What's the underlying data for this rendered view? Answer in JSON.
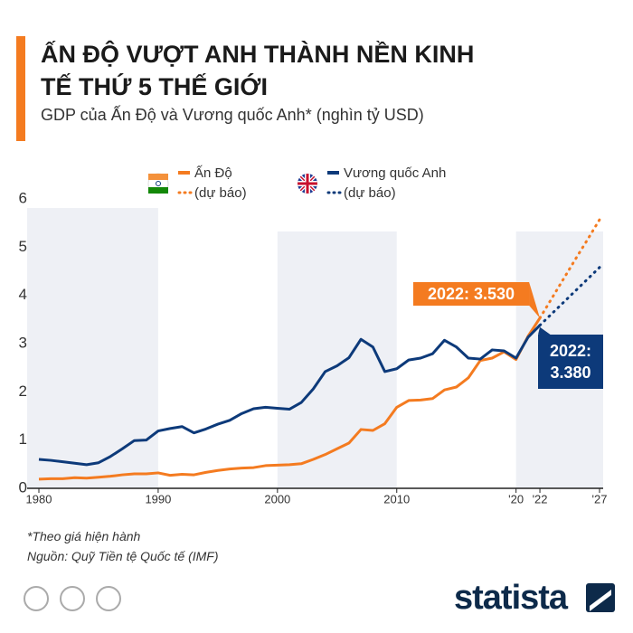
{
  "chart_data": {
    "type": "line",
    "title": "ẤN ĐỘ VƯỢT ANH THÀNH NỀN KINH TẾ THỨ 5 THẾ GIỚI",
    "subtitle": "GDP của Ấn Độ và Vương quốc Anh* (nghìn tỷ USD)",
    "x": [
      1980,
      1981,
      1982,
      1983,
      1984,
      1985,
      1986,
      1987,
      1988,
      1989,
      1990,
      1991,
      1992,
      1993,
      1994,
      1995,
      1996,
      1997,
      1998,
      1999,
      2000,
      2001,
      2002,
      2003,
      2004,
      2005,
      2006,
      2007,
      2008,
      2009,
      2010,
      2011,
      2012,
      2013,
      2014,
      2015,
      2016,
      2017,
      2018,
      2019,
      2020,
      2021,
      2022,
      2023,
      2024,
      2025,
      2026,
      2027
    ],
    "series": [
      {
        "name": "Ấn Độ",
        "forecast_label": "(dự báo)",
        "color": "#f47b20",
        "annotation": "2022: 3.530",
        "values": [
          0.19,
          0.2,
          0.2,
          0.22,
          0.21,
          0.23,
          0.25,
          0.28,
          0.3,
          0.3,
          0.32,
          0.27,
          0.29,
          0.28,
          0.33,
          0.37,
          0.4,
          0.42,
          0.43,
          0.47,
          0.48,
          0.49,
          0.51,
          0.6,
          0.7,
          0.82,
          0.94,
          1.22,
          1.2,
          1.34,
          1.68,
          1.82,
          1.83,
          1.86,
          2.04,
          2.1,
          2.29,
          2.65,
          2.7,
          2.83,
          2.67,
          3.15,
          3.53,
          null,
          null,
          null,
          null,
          null
        ],
        "forecast": [
          null,
          null,
          null,
          null,
          null,
          null,
          null,
          null,
          null,
          null,
          null,
          null,
          null,
          null,
          null,
          null,
          null,
          null,
          null,
          null,
          null,
          null,
          null,
          null,
          null,
          null,
          null,
          null,
          null,
          null,
          null,
          null,
          null,
          null,
          null,
          null,
          null,
          null,
          null,
          null,
          null,
          null,
          null,
          3.94,
          4.35,
          4.76,
          5.16,
          5.57
        ]
      },
      {
        "name": "Vương quốc Anh",
        "forecast_label": "(dự báo)",
        "color": "#0d3a7a",
        "annotation": "2022: 3.380",
        "values": [
          0.6,
          0.58,
          0.55,
          0.52,
          0.49,
          0.53,
          0.66,
          0.82,
          0.99,
          1.0,
          1.19,
          1.24,
          1.28,
          1.15,
          1.23,
          1.33,
          1.41,
          1.55,
          1.65,
          1.68,
          1.66,
          1.64,
          1.78,
          2.06,
          2.42,
          2.54,
          2.71,
          3.09,
          2.93,
          2.42,
          2.48,
          2.66,
          2.7,
          2.79,
          3.07,
          2.93,
          2.7,
          2.68,
          2.87,
          2.85,
          2.7,
          3.13,
          3.38,
          null,
          null,
          null,
          null,
          null
        ],
        "forecast": [
          null,
          null,
          null,
          null,
          null,
          null,
          null,
          null,
          null,
          null,
          null,
          null,
          null,
          null,
          null,
          null,
          null,
          null,
          null,
          null,
          null,
          null,
          null,
          null,
          null,
          null,
          null,
          null,
          null,
          null,
          null,
          null,
          null,
          null,
          null,
          null,
          null,
          null,
          null,
          null,
          null,
          null,
          null,
          3.62,
          3.86,
          4.1,
          4.34,
          4.58
        ]
      }
    ],
    "xlim": [
      1980,
      2027
    ],
    "xticks": [
      1980,
      1990,
      2000,
      2010,
      {
        "value": 2020,
        "label": "'20"
      },
      {
        "value": 2022,
        "label": "'22"
      },
      {
        "value": 2027,
        "label": "'27"
      }
    ],
    "ylim": [
      0,
      6
    ],
    "yticks": [
      0,
      1,
      2,
      3,
      4,
      5,
      6
    ],
    "grid": false
  },
  "footer": {
    "note": "*Theo giá hiện hành",
    "source": "Nguồn: Quỹ Tiền tệ Quốc tế (IMF)",
    "brand": "statista"
  }
}
